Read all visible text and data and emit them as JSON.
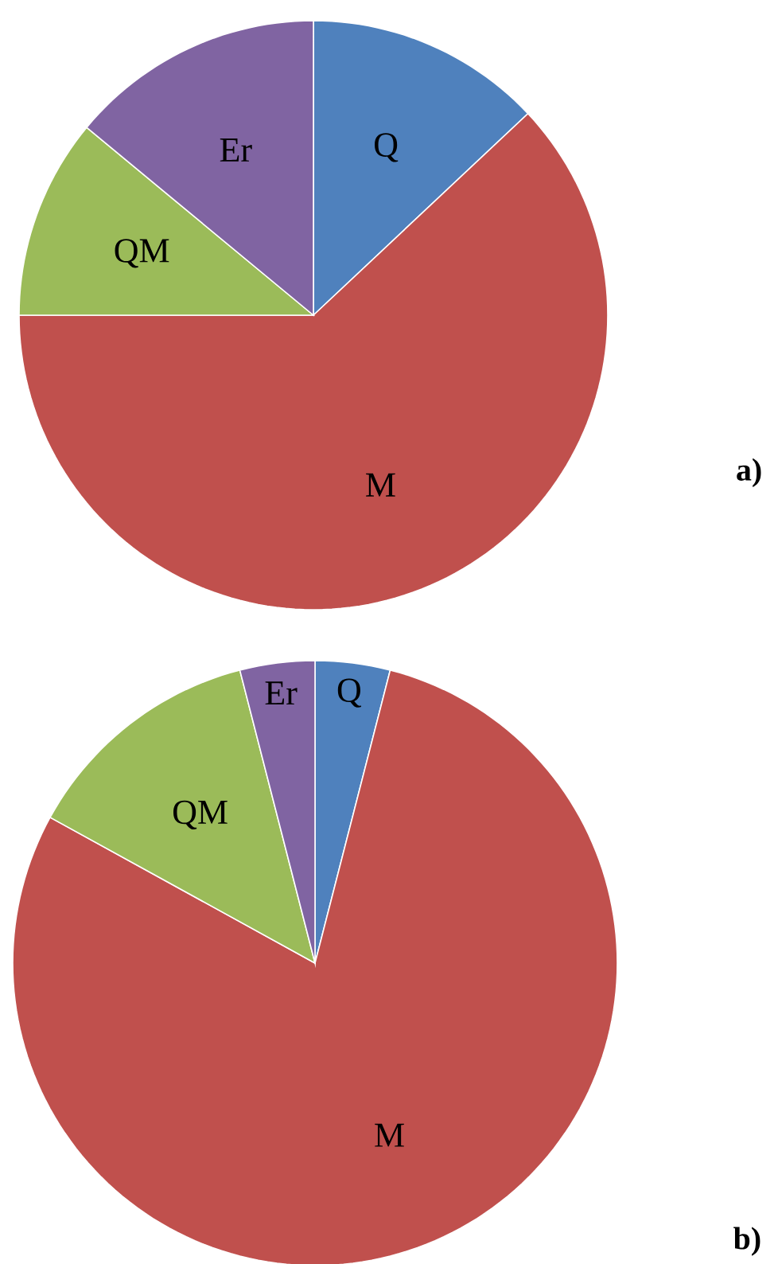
{
  "chart_data": [
    {
      "type": "pie",
      "title": "a)",
      "categories": [
        "Q",
        "M",
        "QM",
        "Er"
      ],
      "values": [
        13,
        62,
        11,
        14
      ],
      "colors": [
        "#4f81bd",
        "#c0504d",
        "#9bbb59",
        "#8064a2"
      ]
    },
    {
      "type": "pie",
      "title": "b)",
      "categories": [
        "Q",
        "M",
        "QM",
        "Er"
      ],
      "values": [
        4,
        79,
        13,
        4
      ],
      "colors": [
        "#4f81bd",
        "#c0504d",
        "#9bbb59",
        "#8064a2"
      ]
    }
  ]
}
